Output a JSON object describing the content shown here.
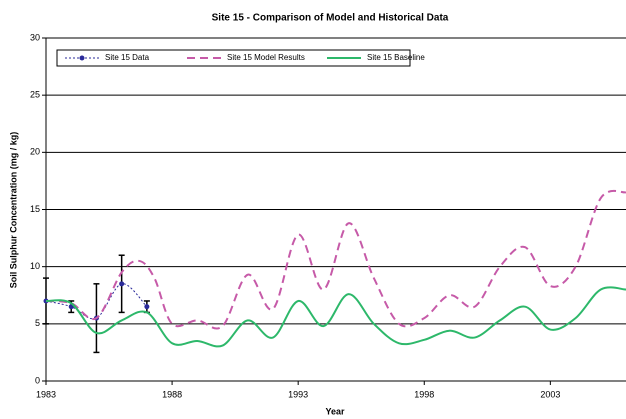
{
  "chart_data": {
    "type": "line",
    "title": "Site 15 - Comparison of Model and Historical Data",
    "x_label": "Year",
    "y_label": "Soil Sulphur Concentration  (mg / kg)",
    "xlim": [
      1983,
      2006
    ],
    "xticks": [
      1983,
      1988,
      1993,
      1998,
      2003
    ],
    "ylim": [
      0,
      30
    ],
    "yticks": [
      0,
      5,
      10,
      15,
      20,
      25,
      30
    ],
    "grid": true,
    "legend": "top-left",
    "series": [
      {
        "name": "Site 15 Data",
        "color": "#2a2a9a",
        "style": "dotted-markers",
        "x": [
          1983,
          1984,
          1985,
          1986,
          1987
        ],
        "values": [
          7,
          6.5,
          5.5,
          8.5,
          6.5
        ],
        "errors": [
          2,
          0.5,
          3,
          2.5,
          0.5
        ]
      },
      {
        "name": "Site 15 Model Results",
        "color": "#c65aa8",
        "style": "dashed",
        "x": [
          1983,
          1984,
          1985,
          1986,
          1986.7,
          1987.3,
          1988,
          1989,
          1990,
          1991,
          1992,
          1993,
          1994,
          1995,
          1996,
          1997,
          1998,
          1999,
          2000,
          2001,
          2002,
          2003,
          2004,
          2005,
          2006
        ],
        "values": [
          7,
          6.8,
          5.5,
          9.5,
          10.5,
          9,
          5,
          5.3,
          4.8,
          9.3,
          6.3,
          12.8,
          8,
          13.8,
          9,
          5,
          5.5,
          7.5,
          6.5,
          10,
          11.7,
          8.3,
          10,
          16,
          16.5
        ]
      },
      {
        "name": "Site 15 Baseline",
        "color": "#2db86a",
        "style": "solid",
        "x": [
          1983,
          1984,
          1985,
          1986,
          1987,
          1988,
          1989,
          1990,
          1991,
          1992,
          1993,
          1994,
          1995,
          1996,
          1997,
          1998,
          1999,
          2000,
          2001,
          2002,
          2003,
          2004,
          2005,
          2006
        ],
        "values": [
          7,
          6.8,
          4.2,
          5.3,
          6,
          3.3,
          3.5,
          3.1,
          5.3,
          3.8,
          7,
          4.8,
          7.6,
          5,
          3.3,
          3.6,
          4.4,
          3.8,
          5.3,
          6.5,
          4.5,
          5.5,
          8,
          8
        ]
      }
    ]
  }
}
